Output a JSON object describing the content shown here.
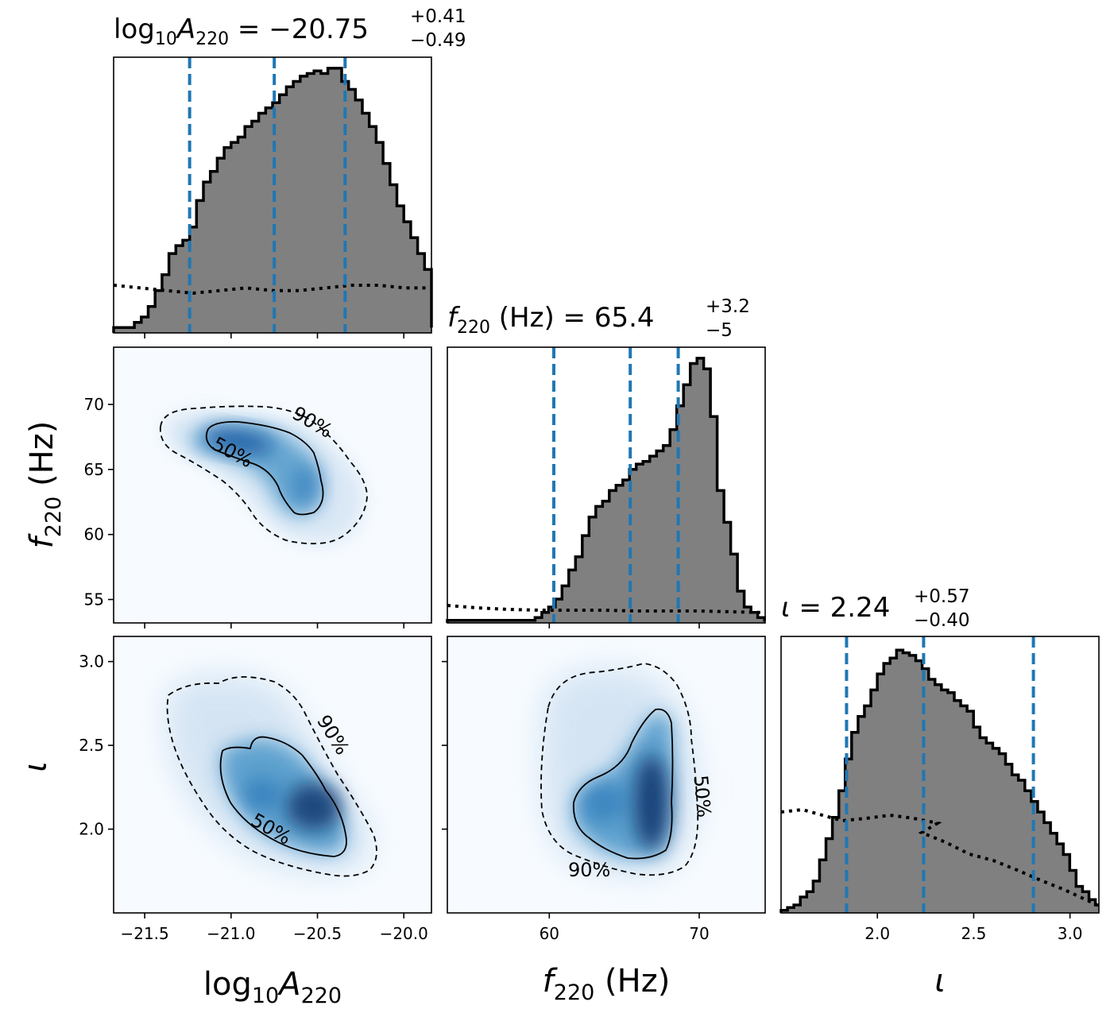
{
  "chart_data": {
    "type": "corner",
    "parameters": [
      {
        "symbol": "log10A220",
        "axis_label": [
          "log",
          "10",
          "A",
          "220"
        ],
        "median": -20.75,
        "plus": "0.41",
        "minus": "0.49",
        "range": [
          -21.68,
          -19.84
        ],
        "ticks": [
          -21.5,
          -21.0,
          -20.5,
          -20.0
        ],
        "tick_labels": [
          "−21.5",
          "−21.0",
          "−20.5",
          "−20.0"
        ],
        "quantiles": [
          -21.24,
          -20.75,
          -20.34
        ]
      },
      {
        "symbol": "f220",
        "axis_label": [
          "f",
          "220",
          " (Hz)"
        ],
        "median": 65.4,
        "plus": "3.2",
        "minus": "5",
        "range": [
          53.2,
          74.4
        ],
        "ticks": [
          55,
          60,
          65,
          70
        ],
        "tick_labels": [
          "55",
          "60",
          "65",
          "70"
        ],
        "x_ticks": [
          60,
          70
        ],
        "x_tick_labels": [
          "60",
          "70"
        ],
        "quantiles": [
          60.3,
          65.4,
          68.6
        ]
      },
      {
        "symbol": "iota",
        "axis_label": [
          "ι"
        ],
        "median": 2.24,
        "plus": "0.57",
        "minus": "0.40",
        "range": [
          1.5,
          3.15
        ],
        "ticks": [
          2.0,
          2.5,
          3.0
        ],
        "tick_labels": [
          "2.0",
          "2.5",
          "3.0"
        ],
        "quantiles": [
          1.84,
          2.24,
          2.81
        ]
      }
    ],
    "titles": {
      "t0": {
        "pre": "log",
        "sub1": "10",
        "main": "A",
        "sub2": "220",
        "eq": " = −20.75",
        "sup": "+0.41",
        "subv": "−0.49"
      },
      "t1": {
        "main": "f",
        "sub2": "220",
        "mid": " (Hz) = 65.4",
        "sup": "+3.2",
        "subv": "−5"
      },
      "t2": {
        "main": "ι",
        "eq": " = 2.24",
        "sup": "+0.57",
        "subv": "−0.40"
      }
    },
    "contour_levels": [
      "50%",
      "90%"
    ],
    "marginals": {
      "log10A220": {
        "edges_start": -21.68,
        "bin_width": 0.04,
        "counts": [
          0.02,
          0.02,
          0.02,
          0.04,
          0.06,
          0.1,
          0.16,
          0.22,
          0.3,
          0.33,
          0.35,
          0.4,
          0.5,
          0.57,
          0.61,
          0.66,
          0.7,
          0.72,
          0.74,
          0.78,
          0.8,
          0.83,
          0.85,
          0.87,
          0.9,
          0.93,
          0.95,
          0.97,
          0.98,
          0.99,
          0.98,
          1.0,
          1.0,
          0.95,
          0.92,
          0.88,
          0.83,
          0.78,
          0.72,
          0.64,
          0.56,
          0.48,
          0.42,
          0.36,
          0.3,
          0.24,
          0.18,
          0.12,
          0.07,
          0.04,
          0.03,
          0.02,
          0.02,
          0.02,
          0.02,
          0.02,
          0.02,
          0.02,
          0.02,
          0.02,
          0.02,
          0.02,
          0.02,
          0.02,
          0.02,
          0.02,
          0.02,
          0.02,
          0.02,
          0.02
        ],
        "prior": [
          0.18,
          0.17,
          0.16,
          0.15,
          0.16,
          0.17,
          0.16,
          0.16,
          0.17,
          0.18,
          0.18,
          0.17,
          0.17
        ]
      },
      "f220": {
        "edges_start": 53.2,
        "bin_width": 0.45,
        "counts": [
          0.01,
          0.01,
          0.01,
          0.01,
          0.01,
          0.01,
          0.01,
          0.01,
          0.01,
          0.01,
          0.01,
          0.01,
          0.01,
          0.02,
          0.04,
          0.06,
          0.09,
          0.14,
          0.2,
          0.25,
          0.33,
          0.4,
          0.44,
          0.46,
          0.5,
          0.52,
          0.54,
          0.58,
          0.6,
          0.61,
          0.63,
          0.65,
          0.67,
          0.73,
          0.82,
          0.9,
          0.98,
          1.0,
          0.96,
          0.78,
          0.5,
          0.38,
          0.26,
          0.12,
          0.06,
          0.04,
          0.02,
          0.01,
          0.01
        ]
      },
      "iota": {
        "edges_start": 1.5,
        "bin_width": 0.0333,
        "counts": [
          0.01,
          0.02,
          0.03,
          0.06,
          0.08,
          0.12,
          0.2,
          0.28,
          0.36,
          0.46,
          0.58,
          0.68,
          0.74,
          0.78,
          0.84,
          0.9,
          0.94,
          0.96,
          0.99,
          0.98,
          0.97,
          0.95,
          0.92,
          0.88,
          0.86,
          0.84,
          0.83,
          0.8,
          0.78,
          0.76,
          0.7,
          0.66,
          0.64,
          0.62,
          0.6,
          0.56,
          0.52,
          0.5,
          0.46,
          0.42,
          0.38,
          0.34,
          0.3,
          0.26,
          0.22,
          0.16,
          0.1,
          0.08,
          0.05,
          0.03
        ]
      }
    }
  }
}
